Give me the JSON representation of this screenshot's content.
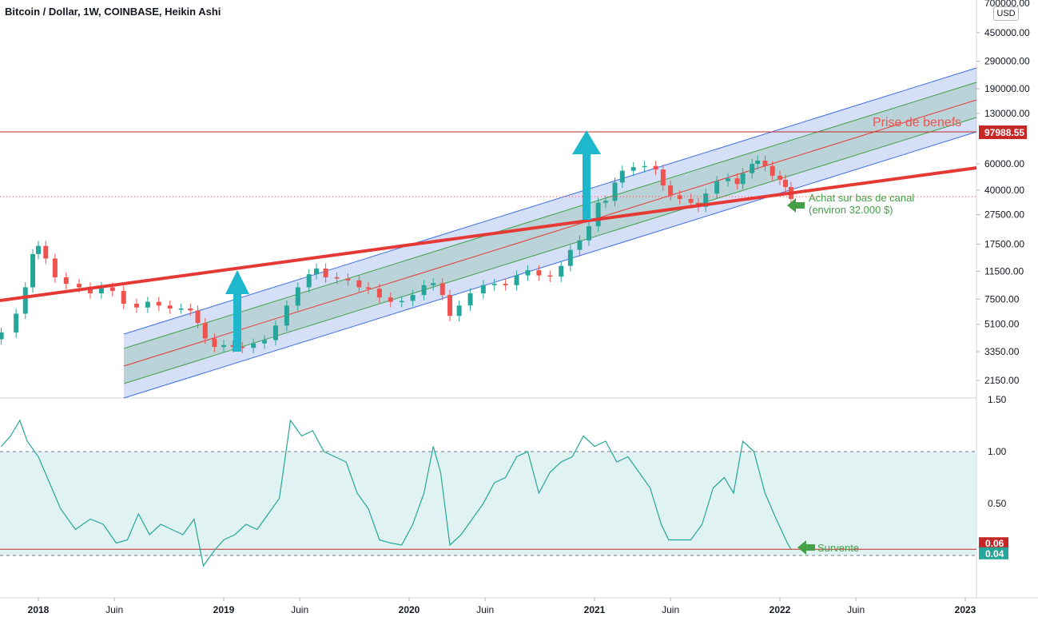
{
  "header": {
    "title": "Bitcoin / Dollar, 1W, COINBASE, Heikin Ashi",
    "currency": "USD",
    "top_price": "700000.00"
  },
  "colors": {
    "up": "#26a69a",
    "down": "#ef5350",
    "trend_red": "#e53935",
    "channel_outer": "#3e6fe0",
    "channel_inner": "#43a047",
    "channel_center": "#e53935",
    "arrow": "#1fb7cc",
    "label_green": "#43a047",
    "osc_line": "#26a69a",
    "osc_fill": "#e0f2f1"
  },
  "annotations": {
    "target_label": "Prise de benefs",
    "target_price": "97988.55",
    "buy_label_1": "Achat sur bas de canal",
    "buy_label_2": "(environ 32.000 $)",
    "oversold_label": "Survente"
  },
  "price_axis": [
    {
      "label": "450000.00",
      "value": 450000
    },
    {
      "label": "290000.00",
      "value": 290000
    },
    {
      "label": "190000.00",
      "value": 190000
    },
    {
      "label": "130000.00",
      "value": 130000
    },
    {
      "label": "60000.00",
      "value": 60000
    },
    {
      "label": "40000.00",
      "value": 40000
    },
    {
      "label": "27500.00",
      "value": 27500
    },
    {
      "label": "17500.00",
      "value": 17500
    },
    {
      "label": "11500.00",
      "value": 11500
    },
    {
      "label": "7500.00",
      "value": 7500
    },
    {
      "label": "5100.00",
      "value": 5100
    },
    {
      "label": "3350.00",
      "value": 3350
    },
    {
      "label": "2150.00",
      "value": 2150
    }
  ],
  "osc_axis": [
    {
      "label": "1.50",
      "value": 1.5
    },
    {
      "label": "1.00",
      "value": 1.0
    },
    {
      "label": "0.50",
      "value": 0.5
    }
  ],
  "osc_badges": [
    {
      "label": "0.06",
      "value": 0.06,
      "color": "#c62828"
    },
    {
      "label": "0.04",
      "value": 0.04,
      "color": "#26a69a"
    }
  ],
  "time_axis": [
    {
      "label": "2018",
      "date": 2018.0,
      "bold": true
    },
    {
      "label": "Juin",
      "date": 2018.41,
      "bold": false
    },
    {
      "label": "2019",
      "date": 2019.0,
      "bold": true
    },
    {
      "label": "Juin",
      "date": 2019.41,
      "bold": false
    },
    {
      "label": "2020",
      "date": 2020.0,
      "bold": true
    },
    {
      "label": "Juin",
      "date": 2020.41,
      "bold": false
    },
    {
      "label": "2021",
      "date": 2021.0,
      "bold": true
    },
    {
      "label": "Juin",
      "date": 2021.41,
      "bold": false
    },
    {
      "label": "2022",
      "date": 2022.0,
      "bold": true
    },
    {
      "label": "Juin",
      "date": 2022.41,
      "bold": false
    },
    {
      "label": "2023",
      "date": 2023.0,
      "bold": true
    }
  ],
  "chart_data": {
    "type": "candlestick",
    "series": [
      {
        "values": [
          [
            2017.8,
            4500
          ],
          [
            2017.88,
            6000
          ],
          [
            2017.93,
            9000
          ],
          [
            2017.97,
            15000
          ],
          [
            2018.0,
            17000
          ],
          [
            2018.04,
            14000
          ],
          [
            2018.09,
            10500
          ],
          [
            2018.15,
            9500
          ],
          [
            2018.22,
            9000
          ],
          [
            2018.28,
            8200
          ],
          [
            2018.34,
            9000
          ],
          [
            2018.4,
            8500
          ],
          [
            2018.46,
            7000
          ],
          [
            2018.53,
            6600
          ],
          [
            2018.59,
            7200
          ],
          [
            2018.65,
            6800
          ],
          [
            2018.71,
            6500
          ],
          [
            2018.77,
            6500
          ],
          [
            2018.82,
            6300
          ],
          [
            2018.86,
            5200
          ],
          [
            2018.9,
            4100
          ],
          [
            2018.95,
            3600
          ],
          [
            2019.0,
            3700
          ],
          [
            2019.05,
            3600
          ],
          [
            2019.1,
            3550
          ],
          [
            2019.16,
            3800
          ],
          [
            2019.22,
            4000
          ],
          [
            2019.28,
            5000
          ],
          [
            2019.34,
            6800
          ],
          [
            2019.4,
            9000
          ],
          [
            2019.46,
            11000
          ],
          [
            2019.5,
            12000
          ],
          [
            2019.55,
            10500
          ],
          [
            2019.61,
            10300
          ],
          [
            2019.67,
            10000
          ],
          [
            2019.73,
            9000
          ],
          [
            2019.78,
            8800
          ],
          [
            2019.84,
            7700
          ],
          [
            2019.9,
            7200
          ],
          [
            2019.96,
            7300
          ],
          [
            2020.02,
            8000
          ],
          [
            2020.08,
            9300
          ],
          [
            2020.13,
            9600
          ],
          [
            2020.18,
            8000
          ],
          [
            2020.22,
            5800
          ],
          [
            2020.27,
            6800
          ],
          [
            2020.33,
            8200
          ],
          [
            2020.4,
            9300
          ],
          [
            2020.46,
            9500
          ],
          [
            2020.52,
            9300
          ],
          [
            2020.58,
            10800
          ],
          [
            2020.64,
            11700
          ],
          [
            2020.7,
            10800
          ],
          [
            2020.76,
            10600
          ],
          [
            2020.82,
            12500
          ],
          [
            2020.87,
            16000
          ],
          [
            2020.92,
            18500
          ],
          [
            2020.97,
            23000
          ],
          [
            2021.02,
            33000
          ],
          [
            2021.06,
            34000
          ],
          [
            2021.11,
            45000
          ],
          [
            2021.15,
            54000
          ],
          [
            2021.21,
            57000
          ],
          [
            2021.27,
            58000
          ],
          [
            2021.33,
            55000
          ],
          [
            2021.37,
            43000
          ],
          [
            2021.41,
            37000
          ],
          [
            2021.46,
            35000
          ],
          [
            2021.52,
            33000
          ],
          [
            2021.56,
            31000
          ],
          [
            2021.6,
            38000
          ],
          [
            2021.66,
            46000
          ],
          [
            2021.72,
            48000
          ],
          [
            2021.77,
            44000
          ],
          [
            2021.8,
            52000
          ],
          [
            2021.85,
            60000
          ],
          [
            2021.88,
            63000
          ],
          [
            2021.92,
            58000
          ],
          [
            2021.96,
            50000
          ],
          [
            2022.0,
            47000
          ],
          [
            2022.03,
            42000
          ],
          [
            2022.06,
            35000
          ]
        ]
      }
    ],
    "oscillator": {
      "guides": [
        1.0,
        0.0
      ],
      "oversold_line": 0.06,
      "values": [
        [
          2017.8,
          1.05
        ],
        [
          2017.85,
          1.15
        ],
        [
          2017.9,
          1.3
        ],
        [
          2017.94,
          1.1
        ],
        [
          2018.0,
          0.95
        ],
        [
          2018.06,
          0.7
        ],
        [
          2018.12,
          0.45
        ],
        [
          2018.2,
          0.25
        ],
        [
          2018.28,
          0.35
        ],
        [
          2018.35,
          0.3
        ],
        [
          2018.42,
          0.12
        ],
        [
          2018.48,
          0.15
        ],
        [
          2018.54,
          0.4
        ],
        [
          2018.6,
          0.2
        ],
        [
          2018.66,
          0.3
        ],
        [
          2018.72,
          0.25
        ],
        [
          2018.78,
          0.2
        ],
        [
          2018.84,
          0.35
        ],
        [
          2018.89,
          -0.1
        ],
        [
          2018.95,
          0.05
        ],
        [
          2019.0,
          0.15
        ],
        [
          2019.06,
          0.2
        ],
        [
          2019.12,
          0.3
        ],
        [
          2019.18,
          0.25
        ],
        [
          2019.24,
          0.4
        ],
        [
          2019.3,
          0.55
        ],
        [
          2019.36,
          1.3
        ],
        [
          2019.42,
          1.15
        ],
        [
          2019.48,
          1.2
        ],
        [
          2019.54,
          1.0
        ],
        [
          2019.6,
          0.95
        ],
        [
          2019.66,
          0.9
        ],
        [
          2019.72,
          0.6
        ],
        [
          2019.78,
          0.45
        ],
        [
          2019.84,
          0.15
        ],
        [
          2019.9,
          0.12
        ],
        [
          2019.96,
          0.1
        ],
        [
          2020.02,
          0.3
        ],
        [
          2020.08,
          0.6
        ],
        [
          2020.13,
          1.05
        ],
        [
          2020.17,
          0.8
        ],
        [
          2020.22,
          0.1
        ],
        [
          2020.28,
          0.2
        ],
        [
          2020.34,
          0.35
        ],
        [
          2020.4,
          0.5
        ],
        [
          2020.46,
          0.7
        ],
        [
          2020.52,
          0.75
        ],
        [
          2020.58,
          0.95
        ],
        [
          2020.64,
          1.0
        ],
        [
          2020.7,
          0.6
        ],
        [
          2020.76,
          0.8
        ],
        [
          2020.82,
          0.9
        ],
        [
          2020.88,
          0.95
        ],
        [
          2020.94,
          1.15
        ],
        [
          2021.0,
          1.05
        ],
        [
          2021.06,
          1.1
        ],
        [
          2021.12,
          0.9
        ],
        [
          2021.18,
          0.95
        ],
        [
          2021.24,
          0.8
        ],
        [
          2021.3,
          0.65
        ],
        [
          2021.36,
          0.3
        ],
        [
          2021.4,
          0.15
        ],
        [
          2021.46,
          0.15
        ],
        [
          2021.52,
          0.15
        ],
        [
          2021.58,
          0.3
        ],
        [
          2021.64,
          0.65
        ],
        [
          2021.7,
          0.75
        ],
        [
          2021.75,
          0.6
        ],
        [
          2021.8,
          1.1
        ],
        [
          2021.86,
          1.0
        ],
        [
          2021.92,
          0.6
        ],
        [
          2021.98,
          0.35
        ],
        [
          2022.04,
          0.12
        ],
        [
          2022.06,
          0.06
        ]
      ]
    }
  }
}
